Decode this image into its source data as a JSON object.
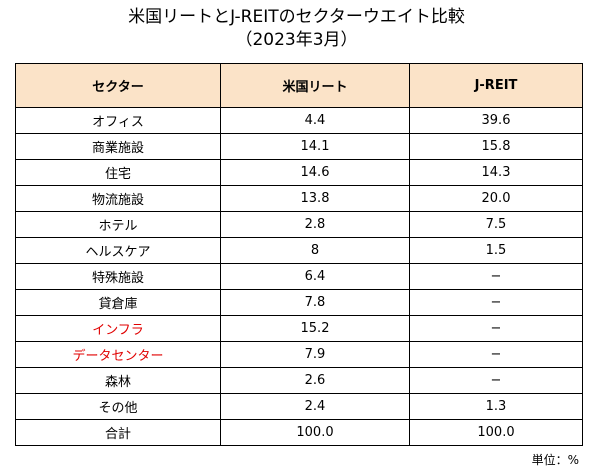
{
  "title": "米国リートとJ-REITのセクターウエイト比較",
  "subtitle": "（2023年3月）",
  "table": {
    "headers": [
      "セクター",
      "米国リート",
      "J-REIT"
    ],
    "rows": [
      {
        "sector": "オフィス",
        "us_reit": "4.4",
        "j_reit": "39.6",
        "highlight": false
      },
      {
        "sector": "商業施設",
        "us_reit": "14.1",
        "j_reit": "15.8",
        "highlight": false
      },
      {
        "sector": "住宅",
        "us_reit": "14.6",
        "j_reit": "14.3",
        "highlight": false
      },
      {
        "sector": "物流施設",
        "us_reit": "13.8",
        "j_reit": "20.0",
        "highlight": false
      },
      {
        "sector": "ホテル",
        "us_reit": "2.8",
        "j_reit": "7.5",
        "highlight": false
      },
      {
        "sector": "ヘルスケア",
        "us_reit": "8",
        "j_reit": "1.5",
        "highlight": false
      },
      {
        "sector": "特殊施設",
        "us_reit": "6.4",
        "j_reit": "−",
        "highlight": false
      },
      {
        "sector": "貸倉庫",
        "us_reit": "7.8",
        "j_reit": "−",
        "highlight": false
      },
      {
        "sector": "インフラ",
        "us_reit": "15.2",
        "j_reit": "−",
        "highlight": true
      },
      {
        "sector": "データセンター",
        "us_reit": "7.9",
        "j_reit": "−",
        "highlight": true
      },
      {
        "sector": "森林",
        "us_reit": "2.6",
        "j_reit": "−",
        "highlight": false
      },
      {
        "sector": "その他",
        "us_reit": "2.4",
        "j_reit": "1.3",
        "highlight": false
      },
      {
        "sector": "合計",
        "us_reit": "100.0",
        "j_reit": "100.0",
        "highlight": false
      }
    ]
  },
  "unit_note": "単位：%",
  "colors": {
    "header_background": "#fbe3c8",
    "highlight_text": "#e00000",
    "border": "#000000"
  }
}
